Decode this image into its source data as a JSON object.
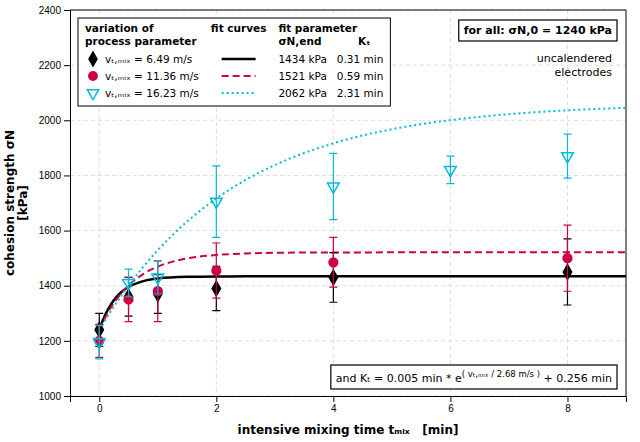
{
  "chart_data": {
    "type": "scatter",
    "xlabel": "intensive mixing time tₘᵢₓ   [min]",
    "ylabel": "cohesion strength σN\n [kPa]",
    "xlim": [
      -0.5,
      9.0
    ],
    "ylim": [
      1000,
      2400
    ],
    "xticks": [
      0,
      2,
      4,
      6,
      8
    ],
    "yticks": [
      1000,
      1200,
      1400,
      1600,
      1800,
      2000,
      2200,
      2400
    ],
    "grid": true,
    "legend": "upper left",
    "series": [
      {
        "name": "vₜ,ₘᵢₓ = 6.49 m/s",
        "color": "#000000",
        "marker": "diamond",
        "x": [
          0,
          0.5,
          1.0,
          2,
          4,
          8
        ],
        "values": [
          1240,
          1360,
          1370,
          1390,
          1430,
          1450
        ],
        "errors": [
          60,
          70,
          70,
          80,
          90,
          120
        ]
      },
      {
        "name": "vₜ,ₘᵢₓ = 11.36 m/s",
        "color": "#cc0044",
        "marker": "circle",
        "x": [
          0,
          0.5,
          1.0,
          2,
          4,
          8
        ],
        "values": [
          1200,
          1350,
          1380,
          1455,
          1485,
          1500
        ],
        "errors": [
          60,
          80,
          110,
          100,
          90,
          120
        ]
      },
      {
        "name": "vₜ,ₘᵢₓ = 16.23 m/s",
        "color": "#00bcd4",
        "marker": "triangle-down-open",
        "x": [
          0,
          0.5,
          1.0,
          2,
          4,
          6,
          8
        ],
        "values": [
          1195,
          1410,
          1430,
          1705,
          1760,
          1820,
          1870
        ],
        "errors": [
          60,
          50,
          60,
          130,
          120,
          50,
          80
        ]
      },
      {
        "type": "line",
        "color": "#000000",
        "line_style": "solid",
        "x": [
          0,
          0.1,
          0.2,
          0.3,
          0.4,
          0.5,
          0.75,
          1,
          1.5,
          2,
          2.5,
          3,
          4,
          5,
          6,
          7,
          8,
          9
        ],
        "values": [
          1240,
          1293.49,
          1332.23,
          1360.29,
          1380.61,
          1395.33,
          1416.74,
          1426.29,
          1432.46,
          1433.69,
          1433.94,
          1433.99,
          1434,
          1434,
          1434,
          1434,
          1434,
          1434
        ]
      },
      {
        "type": "line",
        "color": "#cc0044",
        "line_style": "dashed",
        "x": [
          0,
          0.1,
          0.2,
          0.3,
          0.4,
          0.5,
          0.75,
          1,
          1.5,
          2,
          2.5,
          3,
          4,
          5,
          6,
          7,
          8,
          9
        ],
        "values": [
          1240,
          1283.81,
          1320.79,
          1352,
          1378.35,
          1400.59,
          1442.18,
          1469.4,
          1498.89,
          1511.53,
          1516.94,
          1519.26,
          1520.68,
          1520.94,
          1520.99,
          1521,
          1521,
          1521
        ]
      },
      {
        "type": "line",
        "color": "#00bcd4",
        "line_style": "dotted",
        "x": [
          0,
          0.1,
          0.2,
          0.3,
          0.4,
          0.5,
          0.75,
          1,
          1.5,
          2,
          2.5,
          3,
          4,
          5,
          6,
          7,
          8,
          9
        ],
        "values": [
          1240,
          1274.82,
          1308.17,
          1340.11,
          1370.69,
          1399.98,
          1467.89,
          1528.83,
          1632.6,
          1716.17,
          1783.48,
          1837.69,
          1916.51,
          1967.63,
          2000.79,
          2022.3,
          2036.25,
          2045.3
        ]
      }
    ],
    "legend_headers": [
      "variation of\nprocess parameter",
      "fit curves",
      "fit parameter\nσN,end          Kₜ"
    ],
    "fit_parameters": [
      "1434 kPa   0.31 min",
      "1521 kPa   0.59 min",
      "2062 kPa   2.31 min"
    ],
    "annotations": [
      "for all: σN,0 = 1240 kPa",
      "uncalendered\nelectrodes",
      "and Kₜ = 0.005 min * e( vₜ,ₘᵢₓ / 2.68 m/s ) + 0.256 min"
    ]
  }
}
